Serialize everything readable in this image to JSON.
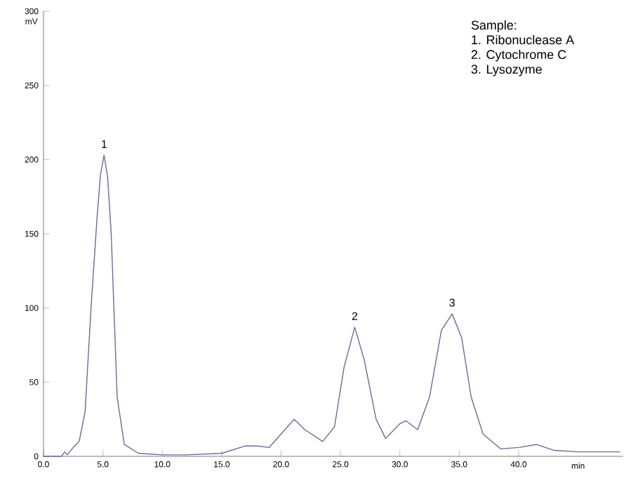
{
  "chart_data": {
    "type": "line",
    "xlabel": "min",
    "ylabel": "mV",
    "series": [
      {
        "color": "#6b6b9a",
        "x": [
          0,
          1.5,
          1.8,
          2,
          2.5,
          3,
          3.5,
          4,
          4.5,
          4.8,
          5.1,
          5.4,
          5.7,
          6.2,
          6.8,
          8,
          10,
          12,
          15,
          17,
          18,
          19,
          20,
          21.1,
          22,
          23.5,
          24.5,
          25.3,
          26.2,
          27,
          28,
          28.8,
          30,
          30.5,
          31.5,
          32.5,
          33.5,
          34.4,
          35.2,
          36,
          37,
          38.5,
          40,
          41.5,
          43,
          45,
          48.5
        ],
        "values": [
          0,
          0,
          3,
          1,
          6,
          10,
          30,
          100,
          160,
          190,
          203,
          188,
          150,
          40,
          8,
          2,
          1,
          1,
          2,
          7,
          7,
          6,
          15,
          25,
          18,
          10,
          20,
          60,
          87,
          65,
          25,
          12,
          22,
          24,
          18,
          40,
          85,
          96,
          80,
          40,
          15,
          5,
          6,
          8,
          4,
          3,
          3
        ]
      }
    ],
    "xlim": [
      0,
      48.8
    ],
    "ylim": [
      0,
      300
    ],
    "xticks": [
      {
        "value": 0,
        "label": "0.0"
      },
      {
        "value": 5,
        "label": "5.0"
      },
      {
        "value": 10,
        "label": "10.0"
      },
      {
        "value": 15,
        "label": "15.0"
      },
      {
        "value": 20,
        "label": "20.0"
      },
      {
        "value": 25,
        "label": "25.0"
      },
      {
        "value": 30,
        "label": "30.0"
      },
      {
        "value": 35,
        "label": "35.0"
      },
      {
        "value": 40,
        "label": "40.0"
      }
    ],
    "yticks": [
      0,
      50,
      100,
      150,
      200,
      250,
      300
    ],
    "annotations": [
      {
        "text": "1",
        "x": 5.1,
        "y": 203
      },
      {
        "text": "2",
        "x": 26.2,
        "y": 87
      },
      {
        "text": "3",
        "x": 34.4,
        "y": 96
      },
      "Sample:",
      "1. Ribonuclease A",
      "2. Cytochrome C",
      "3. Lysozyme"
    ],
    "grid": false,
    "marker": "none",
    "line_style": "solid"
  }
}
